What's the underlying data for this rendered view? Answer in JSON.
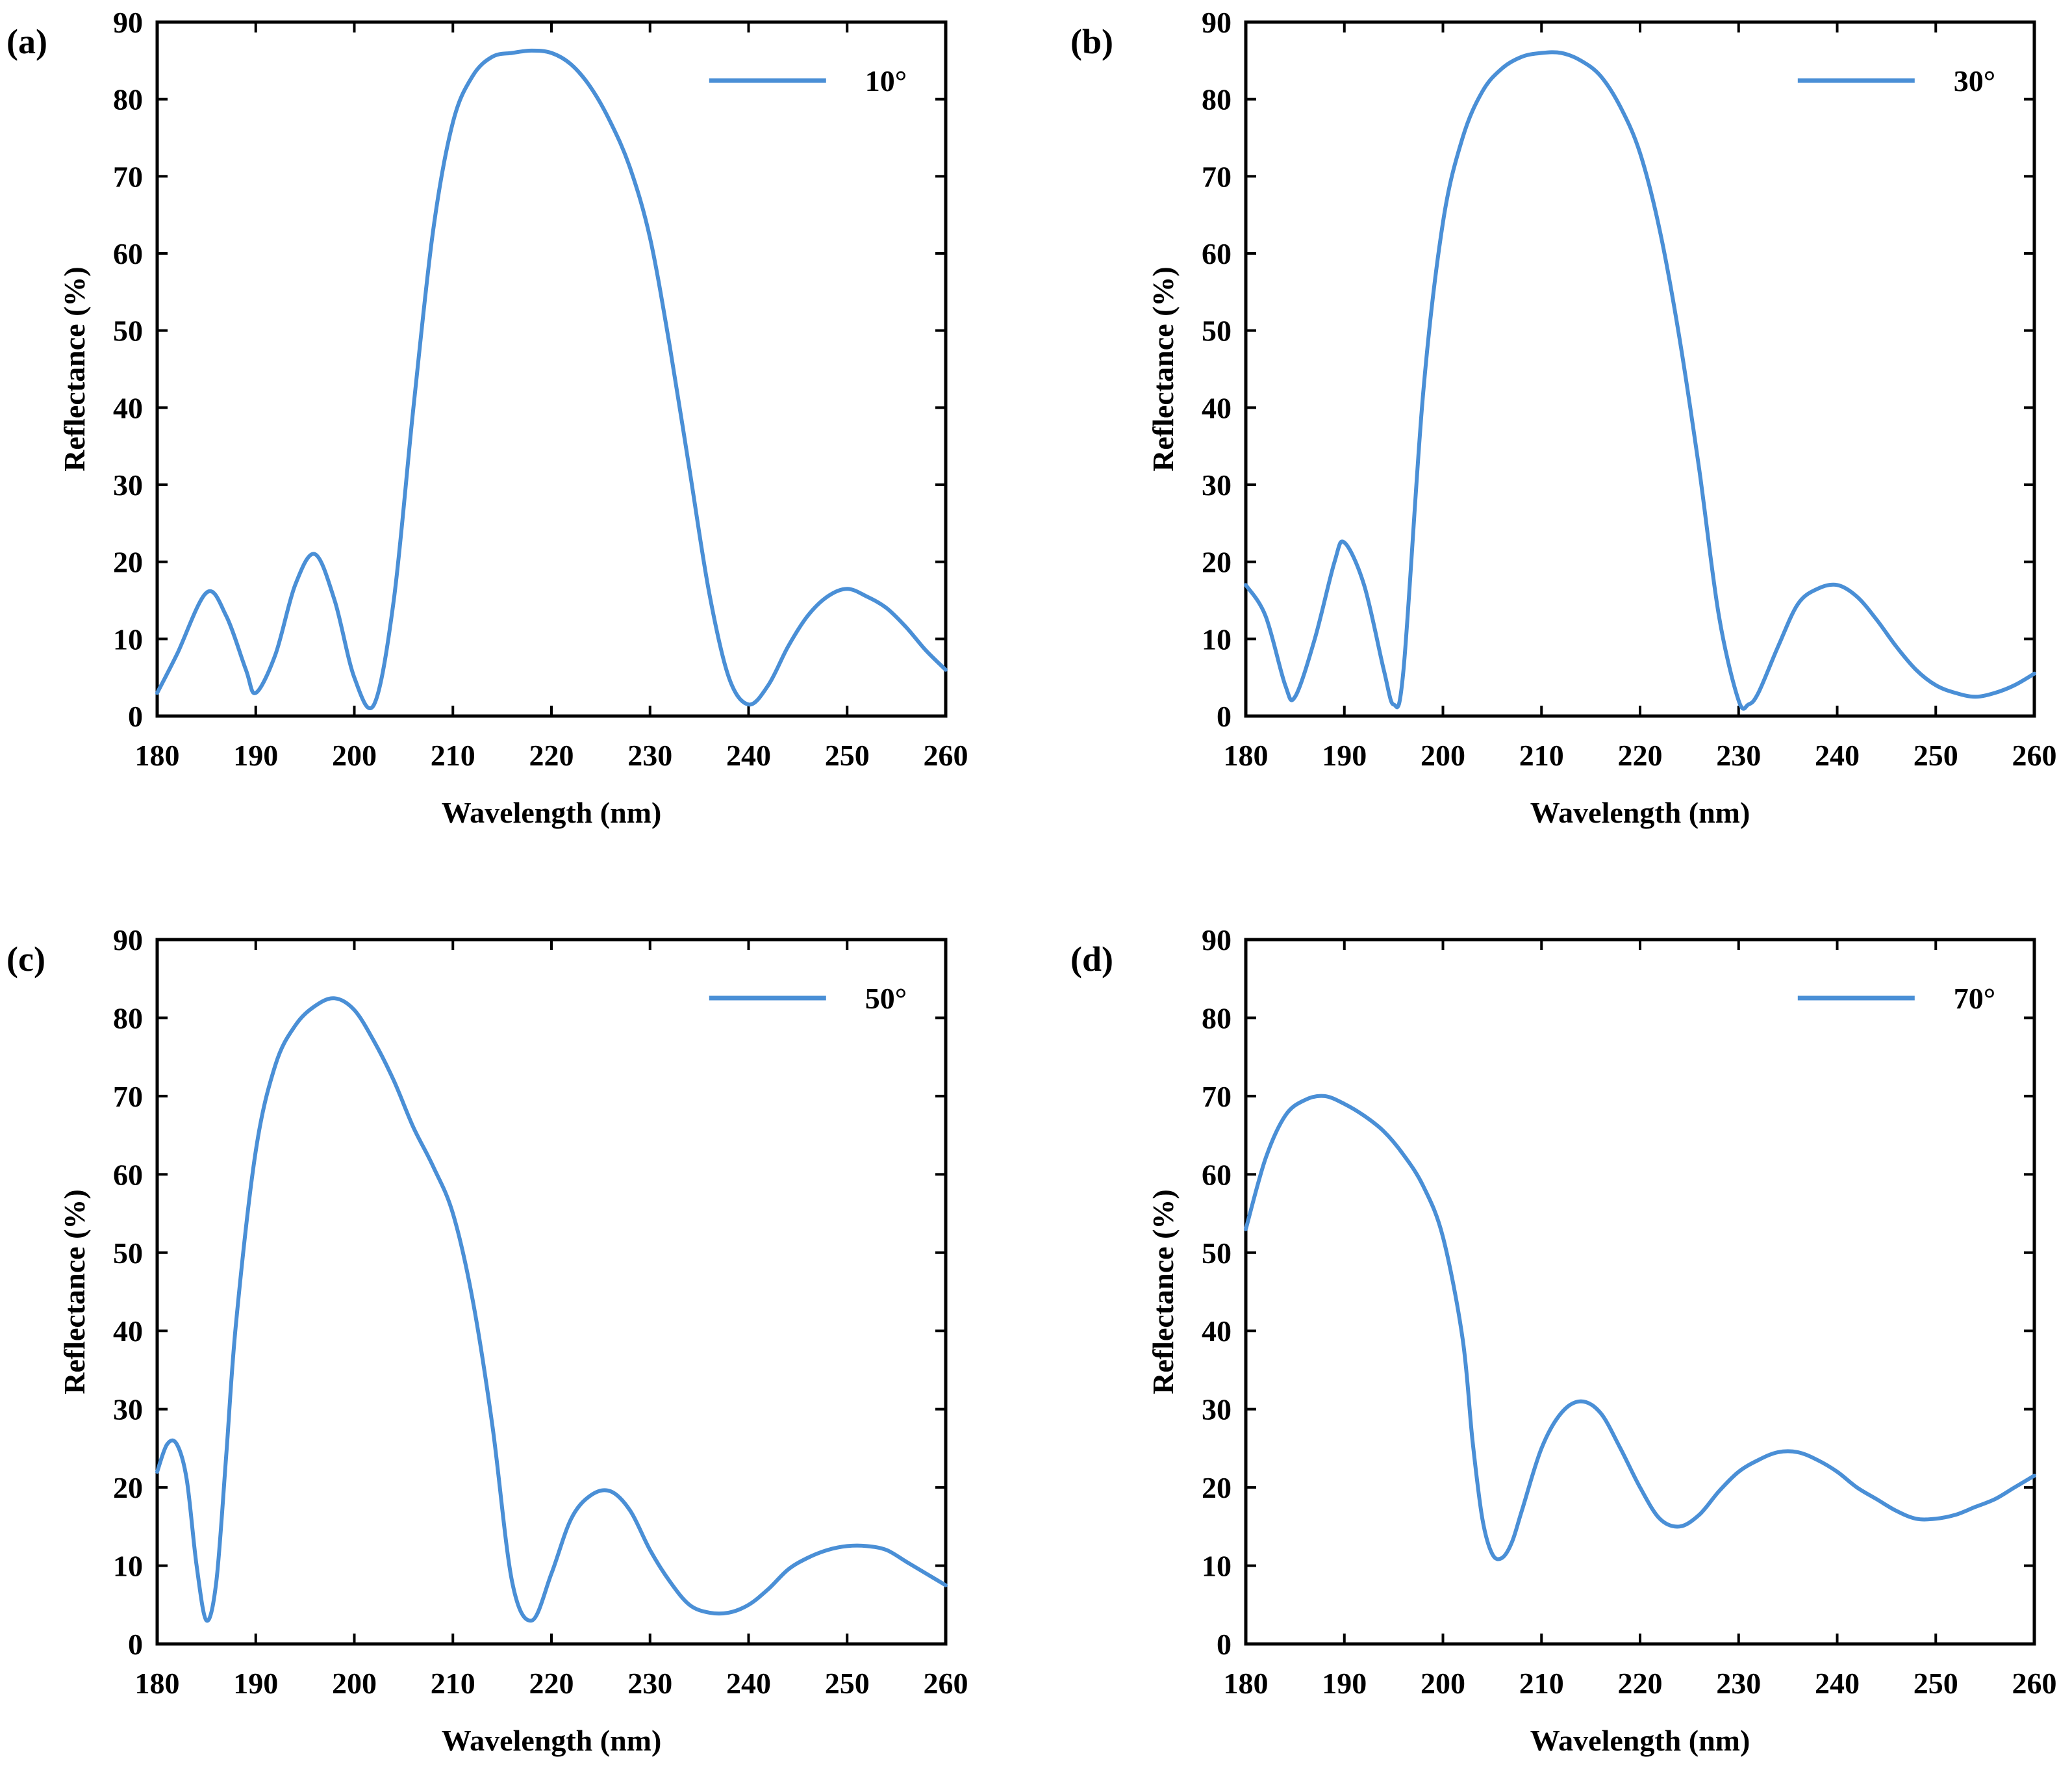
{
  "figure": {
    "xlabel": "Wavelength (nm)",
    "ylabel": "Reflectance (%)",
    "series_color": "#4a8fd6"
  },
  "chart_data": [
    {
      "panel": "(a)",
      "type": "line",
      "legend": "10°",
      "xlabel": "Wavelength (nm)",
      "ylabel": "Reflectance (%)",
      "xlim": [
        180,
        260
      ],
      "ylim": [
        0,
        90
      ],
      "xticks": [
        180,
        190,
        200,
        210,
        220,
        230,
        240,
        250,
        260
      ],
      "yticks": [
        0,
        10,
        20,
        30,
        40,
        50,
        60,
        70,
        80,
        90
      ],
      "x": [
        180,
        182,
        185,
        187,
        189,
        190,
        192,
        194,
        196,
        198,
        200,
        202,
        204,
        206,
        208,
        210,
        212,
        214,
        216,
        218,
        220,
        222,
        224,
        226,
        228,
        230,
        232,
        234,
        236,
        238,
        240,
        242,
        244,
        246,
        248,
        250,
        252,
        254,
        256,
        258,
        260
      ],
      "y": [
        3,
        8,
        16,
        13,
        6,
        3,
        8,
        17,
        21,
        15,
        5,
        1.5,
        15,
        40,
        63,
        77,
        83,
        85.5,
        86,
        86.3,
        86,
        84.5,
        81.5,
        77,
        71,
        62,
        48,
        32,
        16,
        5,
        1.5,
        4,
        9,
        13,
        15.5,
        16.5,
        15.5,
        14,
        11.5,
        8.5,
        6
      ]
    },
    {
      "panel": "(b)",
      "type": "line",
      "legend": "30°",
      "xlabel": "Wavelength (nm)",
      "ylabel": "Reflectance (%)",
      "xlim": [
        180,
        260
      ],
      "ylim": [
        0,
        90
      ],
      "xticks": [
        180,
        190,
        200,
        210,
        220,
        230,
        240,
        250,
        260
      ],
      "yticks": [
        0,
        10,
        20,
        30,
        40,
        50,
        60,
        70,
        80,
        90
      ],
      "x": [
        180,
        182,
        184,
        185,
        187,
        189,
        190,
        192,
        194,
        195,
        196,
        198,
        200,
        202,
        204,
        206,
        208,
        210,
        212,
        214,
        216,
        218,
        220,
        222,
        224,
        226,
        228,
        230,
        231,
        232,
        234,
        236,
        238,
        240,
        242,
        244,
        246,
        248,
        250,
        252,
        254,
        256,
        258,
        260
      ],
      "y": [
        17,
        13,
        4,
        2.5,
        10,
        20,
        22.5,
        17,
        6,
        1.5,
        6,
        42,
        64,
        75,
        81,
        84,
        85.5,
        86,
        86,
        85,
        83,
        79,
        73,
        63,
        49,
        32,
        13,
        2,
        1.5,
        3,
        9,
        14.5,
        16.5,
        17,
        15.5,
        12.5,
        9,
        6,
        4,
        3,
        2.5,
        3,
        4,
        5.5
      ]
    },
    {
      "panel": "(c)",
      "type": "line",
      "legend": "50°",
      "xlabel": "Wavelength (nm)",
      "ylabel": "Reflectance (%)",
      "xlim": [
        180,
        260
      ],
      "ylim": [
        0,
        90
      ],
      "xticks": [
        180,
        190,
        200,
        210,
        220,
        230,
        240,
        250,
        260
      ],
      "yticks": [
        0,
        10,
        20,
        30,
        40,
        50,
        60,
        70,
        80,
        90
      ],
      "x": [
        180,
        181,
        182,
        183,
        184,
        185,
        186,
        187,
        188,
        190,
        192,
        194,
        196,
        198,
        200,
        202,
        204,
        206,
        208,
        210,
        212,
        214,
        216,
        218,
        220,
        222,
        224,
        226,
        228,
        230,
        232,
        234,
        236,
        238,
        240,
        242,
        244,
        246,
        248,
        250,
        252,
        254,
        256,
        258,
        260
      ],
      "y": [
        22,
        25.5,
        25.5,
        21,
        10,
        3,
        8,
        24,
        41,
        63,
        74,
        79,
        81.5,
        82.5,
        81,
        77,
        72,
        66,
        61,
        55,
        44,
        28,
        8,
        3,
        9,
        16,
        19,
        19.5,
        17,
        12,
        8,
        5,
        4,
        4,
        5,
        7,
        9.5,
        11,
        12,
        12.5,
        12.5,
        12,
        10.5,
        9,
        7.5
      ]
    },
    {
      "panel": "(d)",
      "type": "line",
      "legend": "70°",
      "xlabel": "Wavelength (nm)",
      "ylabel": "Reflectance (%)",
      "xlim": [
        180,
        260
      ],
      "ylim": [
        0,
        90
      ],
      "xticks": [
        180,
        190,
        200,
        210,
        220,
        230,
        240,
        250,
        260
      ],
      "yticks": [
        0,
        10,
        20,
        30,
        40,
        50,
        60,
        70,
        80,
        90
      ],
      "x": [
        180,
        182,
        184,
        186,
        188,
        190,
        192,
        194,
        196,
        198,
        200,
        202,
        203,
        204,
        205,
        206,
        207,
        208,
        210,
        212,
        214,
        216,
        218,
        220,
        222,
        224,
        226,
        228,
        230,
        232,
        234,
        236,
        238,
        240,
        242,
        244,
        246,
        248,
        250,
        252,
        254,
        256,
        258,
        260
      ],
      "y": [
        53,
        62,
        67.5,
        69.5,
        70,
        69,
        67.5,
        65.5,
        62.5,
        58.5,
        52,
        39,
        26,
        16,
        11.5,
        11,
        13,
        17,
        25,
        29.5,
        31,
        29.5,
        25,
        20,
        16,
        15,
        16.5,
        19.5,
        22,
        23.5,
        24.5,
        24.5,
        23.5,
        22,
        20,
        18.5,
        17,
        16,
        16,
        16.5,
        17.5,
        18.5,
        20,
        21.5
      ]
    }
  ]
}
